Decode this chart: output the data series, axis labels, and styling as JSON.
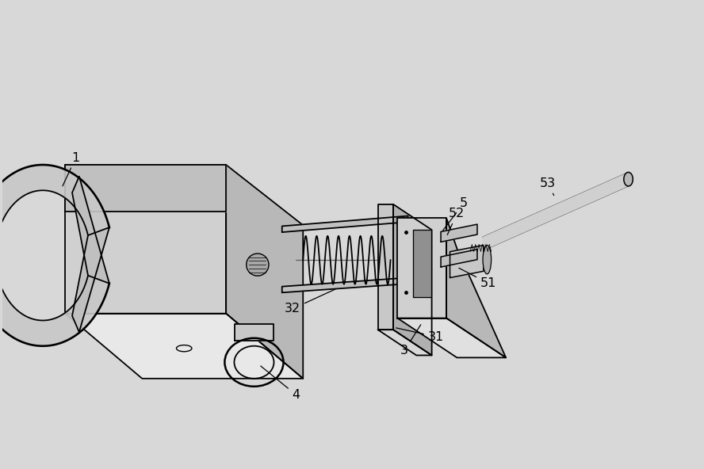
{
  "background_color": "#d8d8d8",
  "line_color": "#000000",
  "label_color": "#000000",
  "fig_width": 8.88,
  "fig_height": 5.92
}
